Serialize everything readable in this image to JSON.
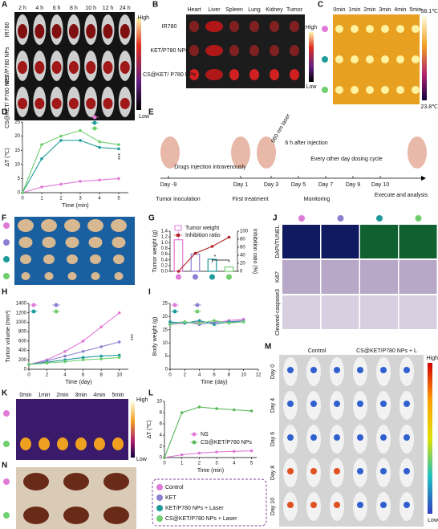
{
  "panel_labels": [
    "A",
    "B",
    "C",
    "D",
    "E",
    "F",
    "G",
    "J",
    "H",
    "I",
    "K",
    "L",
    "M",
    "N"
  ],
  "panel_a": {
    "times": [
      "2 h",
      "4 h",
      "6 h",
      "8 h",
      "10 h",
      "12 h",
      "24 h"
    ],
    "rows": [
      "IR780",
      "KET/P780 NPs",
      "CS@KET/ P780 NPs"
    ],
    "scale": [
      "High",
      "Low"
    ]
  },
  "panel_b": {
    "organs": [
      "Heart",
      "Liver",
      "Spleen",
      "Lung",
      "Kidney",
      "Tumor"
    ],
    "rows": [
      "IR780",
      "KET/P780 NPs",
      "CS@KET/ P780 NPs"
    ],
    "scale": [
      "High",
      "Low"
    ]
  },
  "panel_c": {
    "times": [
      "0min",
      "1min",
      "2min",
      "3min",
      "4min",
      "5min"
    ],
    "scale": [
      "58.1℃",
      "23.8℃"
    ]
  },
  "panel_e": {
    "injection": "Drugs injection intravenously",
    "laser": "660 nm laser",
    "after": "6 h after injection",
    "cycle": "Every other day dosing cycle",
    "days": [
      "Day -9",
      "Day 1",
      "Day 3",
      "Day 5",
      "Day 7",
      "Day 9",
      "Day 10"
    ],
    "stages": [
      "Tumor inoculation",
      "First treatment",
      "Monitoring",
      "Execute and analysis"
    ]
  },
  "panel_j": {
    "rows": [
      "DAPI/TUNEL",
      "Ki67",
      "Cleaved-caspase3"
    ]
  },
  "panel_k": {
    "times": [
      "0min",
      "1min",
      "2min",
      "3min",
      "4min",
      "5min"
    ],
    "scale": [
      "High",
      "Low"
    ]
  },
  "panel_m": {
    "groups": [
      "Control",
      "CS@KET/P780 NPs + L"
    ],
    "days": [
      "Day 0",
      "Day 4",
      "Day 6",
      "Day 8",
      "Day 10"
    ],
    "scale": [
      "High",
      "Low"
    ]
  },
  "legend": [
    "Control",
    "KET",
    "KET/P780 NPs + Laser",
    "CS@KET/P780 NPs + Laser"
  ],
  "chart_data": [
    {
      "type": "line",
      "ylabel": "ΔT (℃)",
      "xlabel": "Time (min)",
      "x": [
        0,
        1,
        2,
        3,
        4,
        5
      ],
      "xlim": [
        0,
        5.5
      ],
      "xticks": [
        0,
        1,
        2,
        3,
        4,
        5
      ],
      "ylim": [
        0,
        25
      ],
      "yticks": [
        0,
        5,
        10,
        15,
        20,
        25
      ],
      "legend": "top-right",
      "annotations": [
        "***"
      ],
      "series": [
        {
          "color": "#e07ad8",
          "values": [
            0,
            2,
            3,
            4,
            4.5,
            5
          ]
        },
        {
          "color": "#1f9a9a",
          "values": [
            0,
            12,
            18.5,
            18.5,
            16,
            15.5
          ]
        },
        {
          "color": "#6fcf6f",
          "values": [
            0,
            17,
            20,
            22,
            18,
            17
          ]
        }
      ]
    },
    {
      "type": "bar_line",
      "ylabel": "Tumor weight (g)",
      "y2label": "Inhibition ratio (%)",
      "categories": [
        null,
        null,
        null,
        null
      ],
      "ylim": [
        0,
        1.4
      ],
      "yticks": [
        {
          "value": 0,
          "label": "0.0"
        },
        0.2,
        0.4,
        0.6,
        0.8,
        {
          "value": 1,
          "label": "1.0"
        },
        1.2,
        1.4
      ],
      "y2lim": [
        0,
        100
      ],
      "y2ticks": [
        0,
        20,
        40,
        60,
        80,
        100
      ],
      "annotations": [
        "*"
      ],
      "series": [
        {
          "name": "Tumor weight",
          "type": "bar",
          "color": "#e07ad8",
          "colors": [
            "#e07ad8",
            "#8b7fd0",
            "#1f9a9a",
            "#6fcf6f"
          ],
          "values": [
            1.1,
            0.6,
            0.42,
            0.15
          ],
          "errors": [
            0.3,
            0.06,
            0.05,
            0.03
          ]
        },
        {
          "name": "Inhibition ratio",
          "type": "line",
          "axis": "y2",
          "color": "#b22222",
          "values": [
            0,
            45,
            62,
            85
          ]
        }
      ]
    },
    {
      "type": "line",
      "ylabel": "Tumor volume (mm³)",
      "xlabel": "Time (day)",
      "x": [
        0,
        2,
        4,
        6,
        8,
        10
      ],
      "xlim": [
        0,
        11
      ],
      "xticks": [
        0,
        2,
        4,
        6,
        8,
        10
      ],
      "ylim": [
        0,
        1400
      ],
      "yticks": [
        0,
        200,
        400,
        600,
        800,
        1000,
        1200,
        1400
      ],
      "legend": "top-left",
      "annotations": [
        "***"
      ],
      "series": [
        {
          "color": "#e07ad8",
          "values": [
            100,
            200,
            380,
            600,
            900,
            1200
          ]
        },
        {
          "color": "#8b7fd0",
          "values": [
            100,
            180,
            280,
            380,
            480,
            580
          ]
        },
        {
          "color": "#1f9a9a",
          "values": [
            100,
            150,
            200,
            250,
            280,
            300
          ]
        },
        {
          "color": "#6fcf6f",
          "values": [
            100,
            130,
            160,
            200,
            220,
            250
          ]
        }
      ]
    },
    {
      "type": "line",
      "ylabel": "Body weight (g)",
      "xlabel": "Time (day)",
      "x": [
        0,
        2,
        4,
        6,
        8,
        10
      ],
      "xlim": [
        0,
        12
      ],
      "xticks": [
        0,
        2,
        4,
        6,
        8,
        10,
        12
      ],
      "ylim": [
        0,
        25
      ],
      "yticks": [
        0,
        5,
        10,
        15,
        20,
        25
      ],
      "legend": "top-left",
      "series": [
        {
          "color": "#e07ad8",
          "values": [
            17,
            17.5,
            18,
            17.5,
            18.5,
            19
          ]
        },
        {
          "color": "#8b7fd0",
          "values": [
            17.5,
            18,
            17,
            18,
            18,
            18.5
          ]
        },
        {
          "color": "#1f9a9a",
          "values": [
            18,
            17.5,
            18.5,
            17,
            18,
            18
          ]
        },
        {
          "color": "#6fcf6f",
          "values": [
            17,
            18,
            17.5,
            18.5,
            17.5,
            18
          ]
        }
      ]
    },
    {
      "type": "line",
      "ylabel": "ΔT (℃)",
      "xlabel": "Time (min)",
      "x": [
        0,
        1,
        2,
        3,
        4,
        5
      ],
      "xlim": [
        0,
        5.3
      ],
      "xticks": [
        0,
        1,
        2,
        3,
        4,
        5
      ],
      "ylim": [
        0,
        10
      ],
      "yticks": [
        0,
        2,
        4,
        6,
        8,
        10
      ],
      "legend": "right",
      "series": [
        {
          "name": "NS",
          "color": "#e07ad8",
          "values": [
            0,
            0.5,
            0.8,
            1,
            1.1,
            1.2
          ]
        },
        {
          "name": "CS@KET/P780 NPs",
          "color": "#5cb85c",
          "values": [
            0,
            8,
            9,
            8.7,
            8.5,
            8.3
          ]
        }
      ]
    }
  ]
}
